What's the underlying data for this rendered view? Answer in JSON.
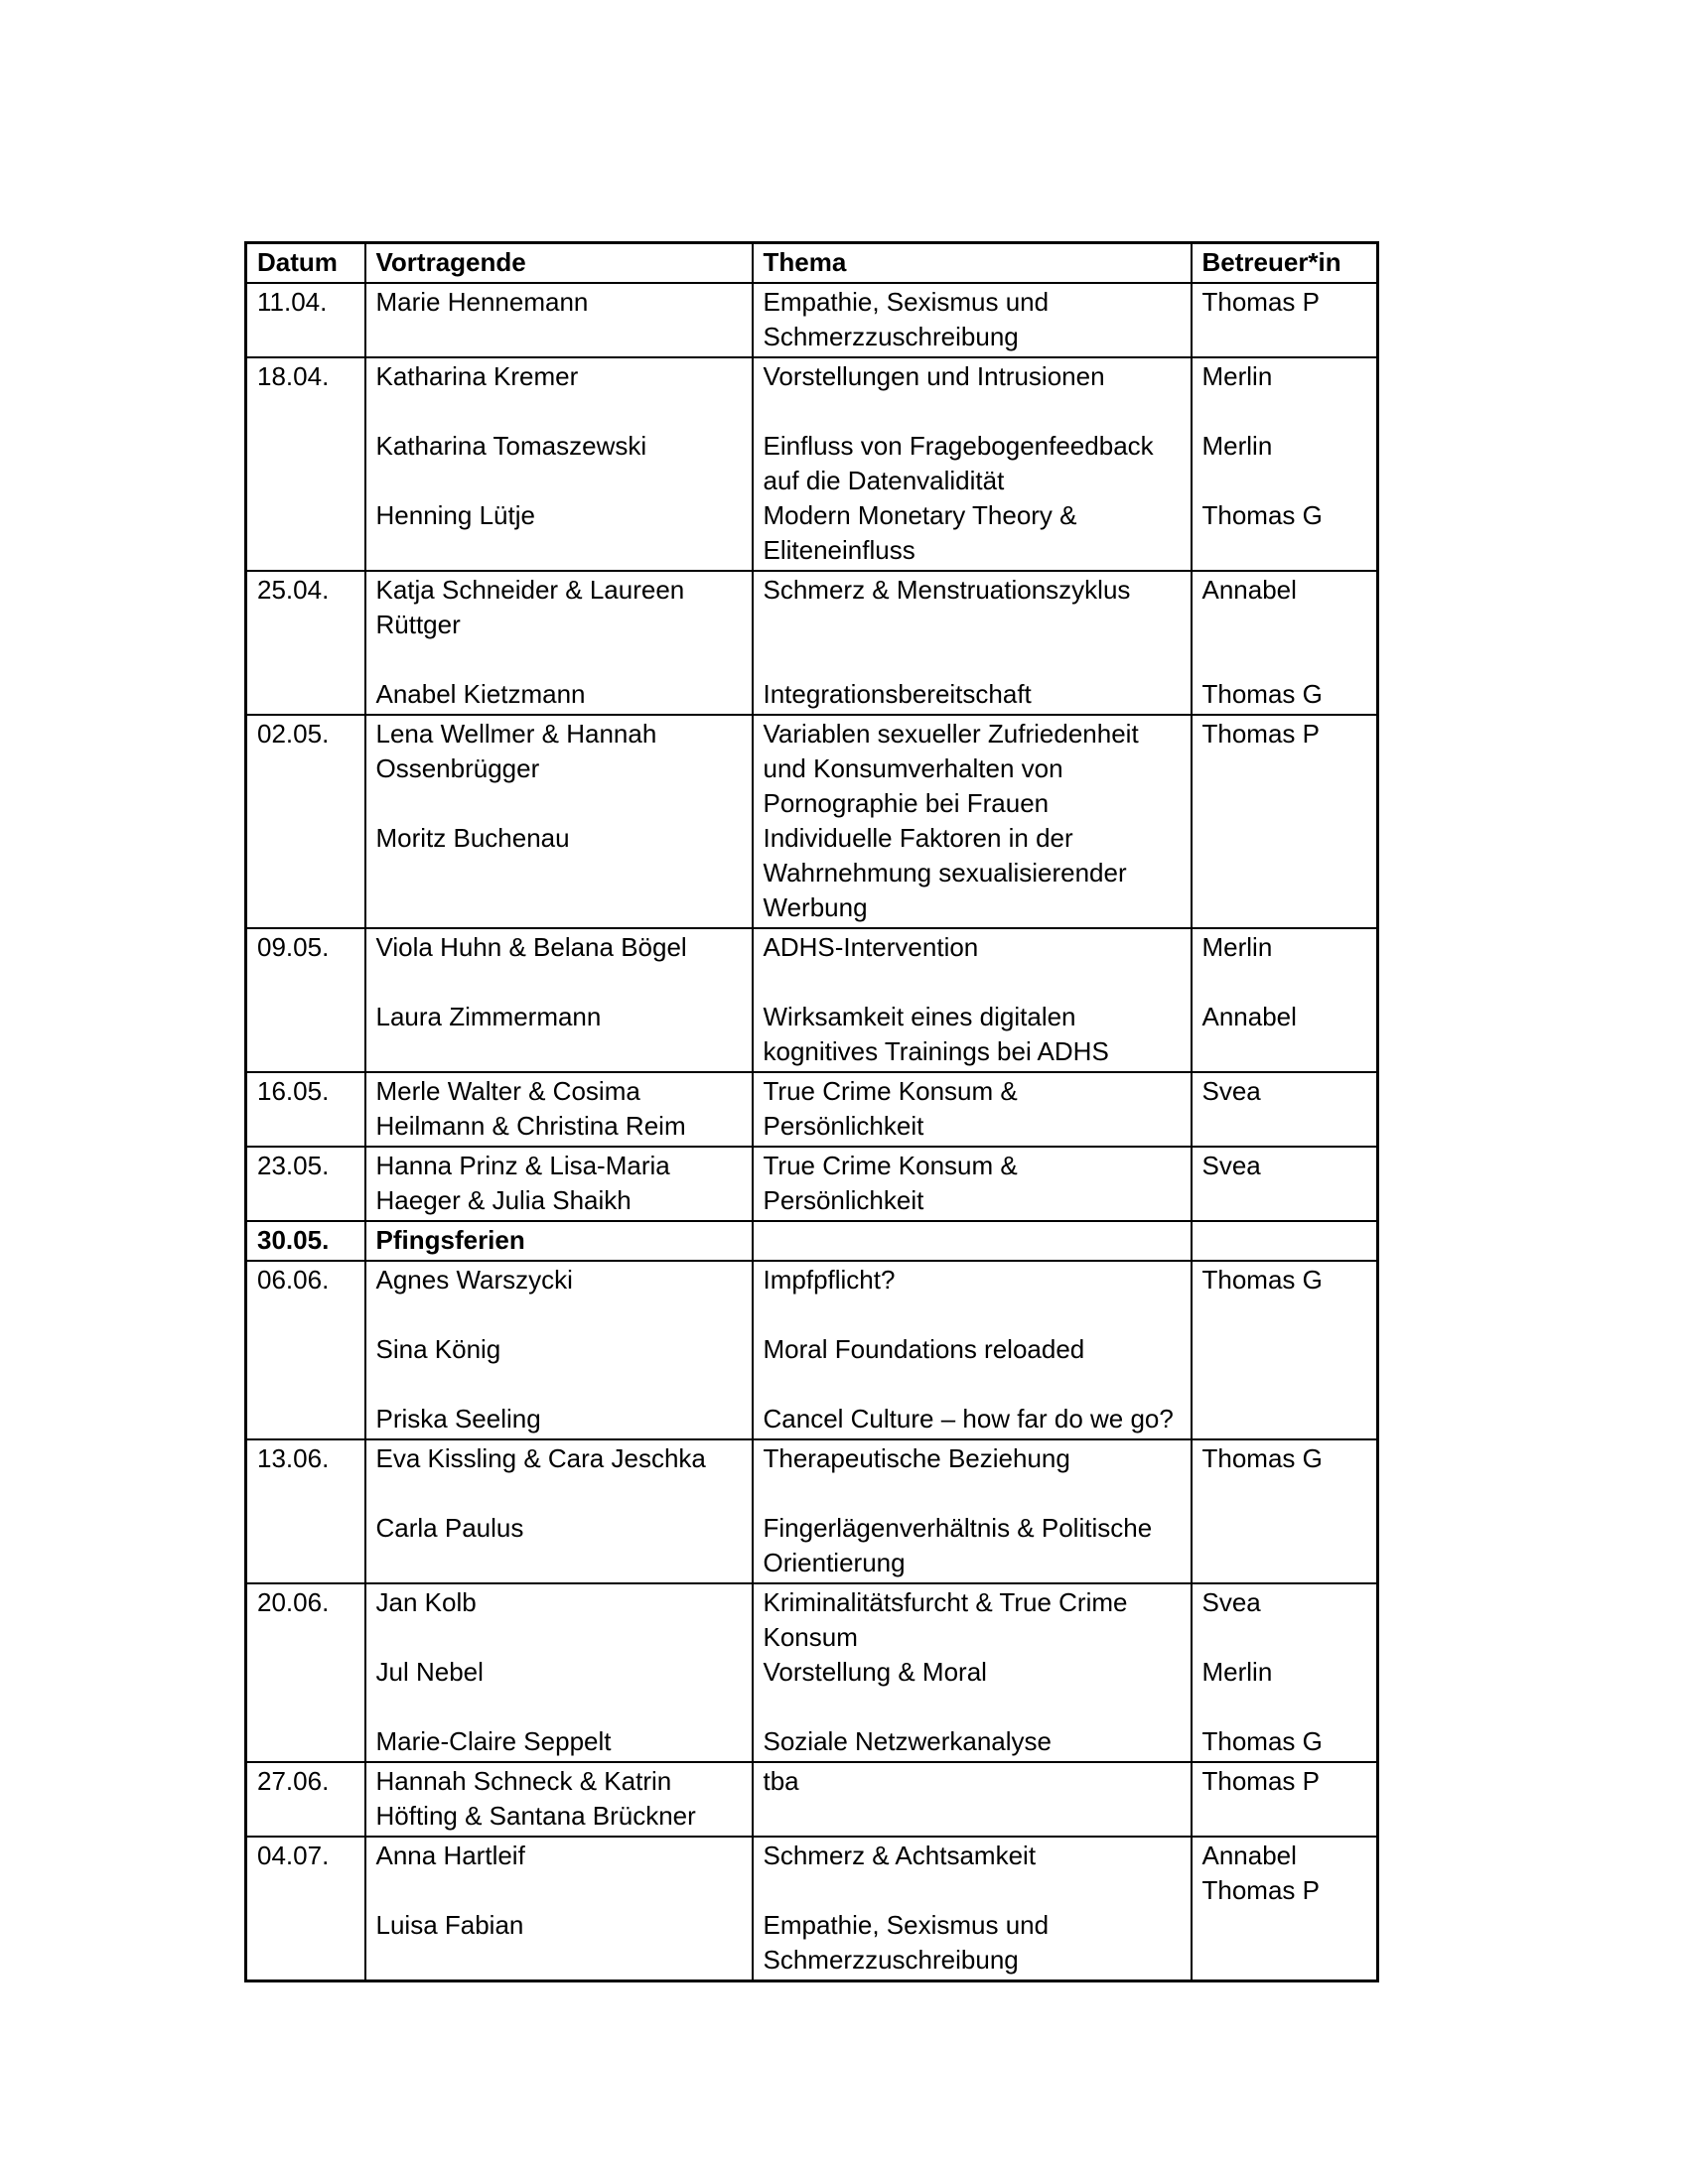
{
  "table": {
    "columns": [
      "Datum",
      "Vortragende",
      "Thema",
      "Betreuer*in"
    ],
    "rows": [
      {
        "date": "11.04.",
        "bold": false,
        "speakers": [
          "Marie Hennemann"
        ],
        "themes": [
          "Empathie, Sexismus und",
          "Schmerzzuschreibung"
        ],
        "supervisors": [
          "Thomas P"
        ]
      },
      {
        "date": "18.04.",
        "bold": false,
        "speakers": [
          "Katharina Kremer",
          "",
          "Katharina Tomaszewski",
          "",
          "Henning Lütje"
        ],
        "themes": [
          "Vorstellungen und Intrusionen",
          "",
          "Einfluss von Fragebogenfeedback",
          "auf die Datenvalidität",
          "Modern Monetary Theory &",
          "Eliteneinfluss"
        ],
        "supervisors": [
          "Merlin",
          "",
          "Merlin",
          "",
          "Thomas G"
        ]
      },
      {
        "date": "25.04.",
        "bold": false,
        "speakers": [
          "Katja Schneider & Laureen",
          "Rüttger",
          "",
          "Anabel Kietzmann"
        ],
        "themes": [
          "Schmerz & Menstruationszyklus",
          "",
          "",
          "Integrationsbereitschaft"
        ],
        "supervisors": [
          "Annabel",
          "",
          "",
          "Thomas G"
        ]
      },
      {
        "date": "02.05.",
        "bold": false,
        "speakers": [
          "Lena Wellmer & Hannah",
          "Ossenbrügger",
          "",
          "Moritz Buchenau"
        ],
        "themes": [
          "Variablen sexueller Zufriedenheit",
          "und Konsumverhalten von",
          "Pornographie bei Frauen",
          "Individuelle Faktoren in der",
          "Wahrnehmung sexualisierender",
          "Werbung"
        ],
        "supervisors": [
          "Thomas P"
        ]
      },
      {
        "date": "09.05.",
        "bold": false,
        "speakers": [
          "Viola Huhn & Belana Bögel",
          "",
          "Laura Zimmermann"
        ],
        "themes": [
          "ADHS-Intervention",
          "",
          "Wirksamkeit eines digitalen",
          "kognitives Trainings bei ADHS"
        ],
        "supervisors": [
          "Merlin",
          "",
          "Annabel"
        ]
      },
      {
        "date": "16.05.",
        "bold": false,
        "speakers": [
          "Merle Walter & Cosima",
          "Heilmann & Christina Reim"
        ],
        "themes": [
          "True Crime Konsum &",
          "Persönlichkeit"
        ],
        "supervisors": [
          "Svea"
        ]
      },
      {
        "date": "23.05.",
        "bold": false,
        "speakers": [
          "Hanna Prinz & Lisa-Maria",
          "Haeger & Julia Shaikh"
        ],
        "themes": [
          "True Crime Konsum &",
          "Persönlichkeit"
        ],
        "supervisors": [
          "Svea"
        ]
      },
      {
        "date": "30.05.",
        "bold": true,
        "speakers": [
          "Pfingsferien"
        ],
        "themes": [],
        "supervisors": []
      },
      {
        "date": "06.06.",
        "bold": false,
        "speakers": [
          "Agnes Warszycki",
          "",
          "Sina König",
          "",
          "Priska Seeling"
        ],
        "themes": [
          "Impfpflicht?",
          "",
          "Moral Foundations reloaded",
          "",
          "Cancel Culture – how far do we go?"
        ],
        "supervisors": [
          "Thomas G"
        ]
      },
      {
        "date": "13.06.",
        "bold": false,
        "speakers": [
          "Eva Kissling & Cara Jeschka",
          "",
          "Carla Paulus"
        ],
        "themes": [
          "Therapeutische Beziehung",
          "",
          "Fingerlägenverhältnis & Politische",
          "Orientierung"
        ],
        "supervisors": [
          "Thomas G"
        ]
      },
      {
        "date": "20.06.",
        "bold": false,
        "speakers": [
          "Jan Kolb",
          "",
          "Jul Nebel",
          "",
          "Marie-Claire Seppelt"
        ],
        "themes": [
          "Kriminalitätsfurcht & True Crime",
          "Konsum",
          "Vorstellung & Moral",
          "",
          "Soziale Netzwerkanalyse"
        ],
        "supervisors": [
          "Svea",
          "",
          "Merlin",
          "",
          "Thomas G"
        ]
      },
      {
        "date": "27.06.",
        "bold": false,
        "speakers": [
          "Hannah Schneck & Katrin",
          "Höfting & Santana Brückner"
        ],
        "themes": [
          "tba"
        ],
        "supervisors": [
          "Thomas P"
        ]
      },
      {
        "date": "04.07.",
        "bold": false,
        "speakers": [
          "Anna Hartleif",
          "",
          "Luisa Fabian"
        ],
        "themes": [
          "Schmerz & Achtsamkeit",
          "",
          "Empathie, Sexismus und",
          "Schmerzzuschreibung"
        ],
        "supervisors": [
          "Annabel",
          "Thomas P"
        ]
      }
    ]
  }
}
